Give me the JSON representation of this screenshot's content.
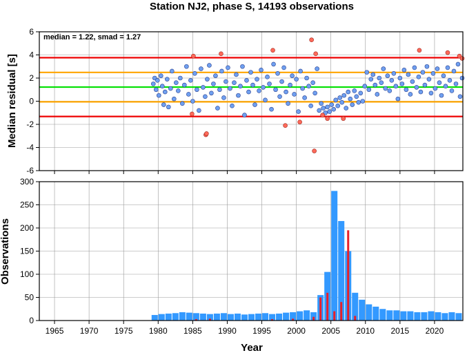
{
  "chart_data": [
    {
      "type": "scatter",
      "title": "Station NJ2, phase S, 14193 observations",
      "ylabel": "Median residual [s]",
      "annotation": "median = 1.22, smad = 1.27",
      "xlim": [
        1962.8,
        2024.1
      ],
      "xticks": [
        1965,
        1970,
        1975,
        1980,
        1985,
        1990,
        1995,
        2000,
        2005,
        2010,
        2015,
        2020
      ],
      "ylim": [
        -6,
        6
      ],
      "yticks": [
        -6,
        -4,
        -2,
        0,
        2,
        4,
        6
      ],
      "grid": true,
      "hlines": [
        {
          "value": 3.76,
          "color": "#ee0000"
        },
        {
          "value": 2.49,
          "color": "#ffa500"
        },
        {
          "value": 1.22,
          "color": "#00e000"
        },
        {
          "value": -0.05,
          "color": "#ffa500"
        },
        {
          "value": -1.32,
          "color": "#ee0000"
        }
      ],
      "series": [
        {
          "color": "#6fa0f0",
          "stroke": "#2a3f8f",
          "x": [
            1979.3,
            1979.5,
            1979.7,
            1979.9,
            1980.1,
            1980.4,
            1980.6,
            1980.8,
            1981.0,
            1981.3,
            1981.5,
            1981.8,
            1982.0,
            1982.3,
            1982.6,
            1982.9,
            1983.2,
            1983.5,
            1983.8,
            1984.1,
            1984.4,
            1984.7,
            1985.0,
            1985.3,
            1985.6,
            1985.9,
            1986.2,
            1986.5,
            1986.8,
            1987.1,
            1987.4,
            1987.7,
            1988.0,
            1988.3,
            1988.6,
            1988.9,
            1989.2,
            1989.5,
            1989.8,
            1990.1,
            1990.4,
            1990.7,
            1991.0,
            1991.3,
            1991.6,
            1991.9,
            1992.2,
            1992.5,
            1992.8,
            1993.1,
            1993.4,
            1993.7,
            1994.0,
            1994.3,
            1994.6,
            1994.9,
            1995.2,
            1995.5,
            1995.8,
            1996.1,
            1996.4,
            1996.7,
            1997.0,
            1997.3,
            1997.6,
            1997.9,
            1998.2,
            1998.5,
            1998.8,
            1999.1,
            1999.4,
            1999.7,
            2000.0,
            2000.3,
            2000.6,
            2000.9,
            2001.2,
            2001.5,
            2001.8,
            2002.1,
            2002.4,
            2002.7,
            2003.0,
            2003.3,
            2003.6,
            2003.9,
            2004.2,
            2004.5,
            2004.8,
            2005.1,
            2005.4,
            2005.7,
            2006.0,
            2006.3,
            2006.6,
            2006.9,
            2007.2,
            2007.5,
            2007.8,
            2008.1,
            2008.4,
            2008.7,
            2009.0,
            2009.3,
            2009.6,
            2009.9,
            2010.2,
            2010.5,
            2010.8,
            2011.1,
            2011.4,
            2011.7,
            2012.0,
            2012.3,
            2012.6,
            2012.9,
            2013.2,
            2013.5,
            2013.8,
            2014.1,
            2014.4,
            2014.7,
            2015.0,
            2015.3,
            2015.6,
            2015.9,
            2016.2,
            2016.5,
            2016.8,
            2017.1,
            2017.4,
            2017.7,
            2018.0,
            2018.3,
            2018.6,
            2018.9,
            2019.2,
            2019.5,
            2019.8,
            2020.1,
            2020.4,
            2020.7,
            2021.0,
            2021.3,
            2021.6,
            2021.9,
            2022.2,
            2022.5,
            2022.8,
            2023.1,
            2023.4,
            2023.7,
            2024.0
          ],
          "values": [
            1.5,
            2.0,
            1.0,
            1.8,
            0.5,
            2.2,
            1.3,
            -0.3,
            0.8,
            1.9,
            -0.5,
            1.1,
            2.6,
            0.2,
            1.6,
            0.9,
            2.0,
            -0.2,
            1.4,
            3.0,
            0.6,
            1.8,
            0.0,
            2.4,
            1.0,
            -0.8,
            2.8,
            1.2,
            0.4,
            1.9,
            3.1,
            0.7,
            1.5,
            2.2,
            -0.6,
            1.0,
            2.6,
            0.3,
            1.7,
            2.9,
            1.1,
            -0.4,
            1.6,
            2.3,
            0.5,
            1.3,
            3.0,
            -1.2,
            1.8,
            0.8,
            2.5,
            1.4,
            -0.3,
            1.9,
            0.9,
            2.7,
            1.2,
            0.1,
            2.1,
            1.5,
            -0.7,
            3.2,
            1.0,
            2.4,
            0.4,
            1.7,
            2.9,
            0.8,
            -0.2,
            1.4,
            2.2,
            0.6,
            1.9,
            -0.9,
            2.6,
            1.1,
            0.3,
            2.0,
            1.3,
            -0.4,
            1.6,
            0.7,
            2.8,
            -0.8,
            -0.2,
            -0.6,
            -1.0,
            -0.5,
            -0.9,
            -0.3,
            -0.7,
            0.1,
            -0.4,
            0.3,
            -0.1,
            0.5,
            -0.6,
            0.8,
            0.2,
            -0.3,
            0.9,
            0.4,
            -0.1,
            0.7,
            0.0,
            1.3,
            2.5,
            1.0,
            1.9,
            2.3,
            1.4,
            0.6,
            2.0,
            1.6,
            2.8,
            1.1,
            2.2,
            0.9,
            1.8,
            2.4,
            1.3,
            0.2,
            2.0,
            1.5,
            2.7,
            1.0,
            2.3,
            0.6,
            1.7,
            2.9,
            1.2,
            2.1,
            0.8,
            2.5,
            1.4,
            3.0,
            1.9,
            0.7,
            2.4,
            1.1,
            2.8,
            1.6,
            0.5,
            2.2,
            1.3,
            2.9,
            1.8,
            0.9,
            2.6,
            1.5,
            3.2,
            0.4,
            2.0
          ]
        },
        {
          "color": "#ff6a5a",
          "stroke": "#a02a20",
          "x": [
            1984.9,
            1985.1,
            1986.9,
            1987.0,
            1989.1,
            1996.6,
            1998.4,
            2000.5,
            2002.2,
            2002.6,
            2002.8,
            2003.8,
            2004.5,
            2006.8,
            2017.8,
            2021.9,
            2023.6,
            2024.0
          ],
          "values": [
            -1.1,
            3.9,
            -2.9,
            -2.8,
            4.1,
            4.4,
            -2.1,
            -1.8,
            5.3,
            -4.3,
            4.1,
            -1.2,
            -1.5,
            -1.5,
            4.4,
            4.2,
            3.9,
            3.7
          ]
        }
      ]
    },
    {
      "type": "histogram",
      "ylabel": "Observations",
      "xlabel": "Year",
      "xlim": [
        1962.8,
        2024.1
      ],
      "xticks": [
        1965,
        1970,
        1975,
        1980,
        1985,
        1990,
        1995,
        2000,
        2005,
        2010,
        2015,
        2020
      ],
      "ylim": [
        0,
        300
      ],
      "yticks": [
        0,
        50,
        100,
        150,
        200,
        250,
        300
      ],
      "grid": true,
      "bins": [
        1979,
        1980,
        1981,
        1982,
        1983,
        1984,
        1985,
        1986,
        1987,
        1988,
        1989,
        1990,
        1991,
        1992,
        1993,
        1994,
        1995,
        1996,
        1997,
        1998,
        1999,
        2000,
        2001,
        2002,
        2003,
        2004,
        2005,
        2006,
        2007,
        2008,
        2009,
        2010,
        2011,
        2012,
        2013,
        2014,
        2015,
        2016,
        2017,
        2018,
        2019,
        2020,
        2021,
        2022,
        2023,
        2024
      ],
      "series": [
        {
          "color": "#3399ff",
          "values": [
            12,
            14,
            15,
            16,
            18,
            17,
            16,
            15,
            14,
            15,
            16,
            14,
            15,
            13,
            14,
            15,
            16,
            14,
            15,
            17,
            18,
            20,
            22,
            18,
            55,
            105,
            280,
            215,
            150,
            60,
            45,
            35,
            30,
            25,
            22,
            22,
            20,
            20,
            18,
            18,
            20,
            18,
            16,
            18,
            16
          ]
        },
        {
          "color": "#e8202a",
          "values": [
            0,
            0,
            0,
            0,
            0,
            0,
            3,
            0,
            4,
            0,
            0,
            0,
            0,
            0,
            0,
            0,
            0,
            3,
            0,
            0,
            4,
            0,
            0,
            8,
            50,
            60,
            20,
            40,
            195,
            10,
            0,
            0,
            0,
            0,
            0,
            0,
            0,
            0,
            0,
            0,
            0,
            0,
            0,
            0,
            0
          ]
        }
      ]
    }
  ]
}
